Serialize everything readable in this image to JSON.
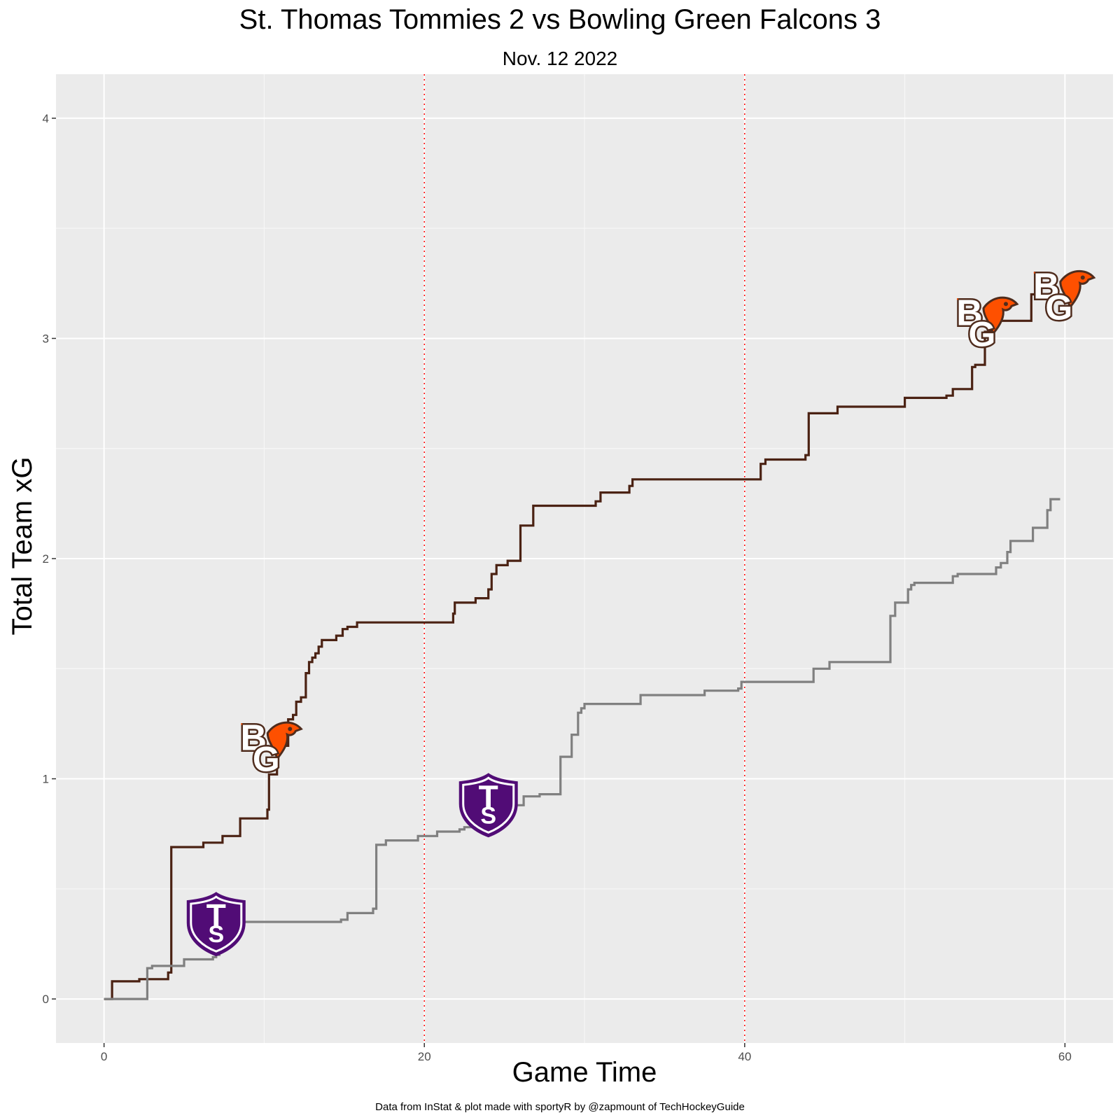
{
  "chart_data": {
    "type": "line",
    "title": "St. Thomas Tommies 2 vs Bowling Green Falcons 3",
    "subtitle": "Nov. 12 2022",
    "xlabel": "Game Time",
    "ylabel": "Total Team xG",
    "caption": "Data from InStat & plot made with sportyR by @zapmount of TechHockeyGuide",
    "xlim": [
      -3,
      63
    ],
    "ylim": [
      -0.2,
      4.2
    ],
    "x_ticks": [
      0,
      20,
      40,
      60
    ],
    "y_ticks": [
      0,
      1,
      2,
      3,
      4
    ],
    "period_lines": [
      20,
      40
    ],
    "grid": true,
    "series": [
      {
        "team": "Bowling Green Falcons",
        "color": "#4b2213",
        "points": [
          [
            0,
            0
          ],
          [
            0.5,
            0
          ],
          [
            0.5,
            0.08
          ],
          [
            2.2,
            0.08
          ],
          [
            2.2,
            0.09
          ],
          [
            4.0,
            0.09
          ],
          [
            4.0,
            0.12
          ],
          [
            4.2,
            0.12
          ],
          [
            4.2,
            0.69
          ],
          [
            6.2,
            0.69
          ],
          [
            6.2,
            0.71
          ],
          [
            7.4,
            0.71
          ],
          [
            7.4,
            0.74
          ],
          [
            8.5,
            0.74
          ],
          [
            8.5,
            0.82
          ],
          [
            10.2,
            0.82
          ],
          [
            10.2,
            0.86
          ],
          [
            10.3,
            0.86
          ],
          [
            10.3,
            1.02
          ],
          [
            10.8,
            1.02
          ],
          [
            10.8,
            1.15
          ],
          [
            11.5,
            1.15
          ],
          [
            11.5,
            1.27
          ],
          [
            11.8,
            1.27
          ],
          [
            11.8,
            1.29
          ],
          [
            12.0,
            1.29
          ],
          [
            12.0,
            1.35
          ],
          [
            12.3,
            1.35
          ],
          [
            12.3,
            1.37
          ],
          [
            12.6,
            1.37
          ],
          [
            12.6,
            1.48
          ],
          [
            12.8,
            1.48
          ],
          [
            12.8,
            1.53
          ],
          [
            13.0,
            1.53
          ],
          [
            13.0,
            1.55
          ],
          [
            13.2,
            1.55
          ],
          [
            13.2,
            1.57
          ],
          [
            13.4,
            1.57
          ],
          [
            13.4,
            1.6
          ],
          [
            13.6,
            1.6
          ],
          [
            13.6,
            1.63
          ],
          [
            14.5,
            1.63
          ],
          [
            14.5,
            1.65
          ],
          [
            14.9,
            1.65
          ],
          [
            14.9,
            1.68
          ],
          [
            15.2,
            1.68
          ],
          [
            15.2,
            1.69
          ],
          [
            15.8,
            1.69
          ],
          [
            15.8,
            1.71
          ],
          [
            21.8,
            1.71
          ],
          [
            21.8,
            1.75
          ],
          [
            21.9,
            1.75
          ],
          [
            21.9,
            1.8
          ],
          [
            23.2,
            1.8
          ],
          [
            23.2,
            1.82
          ],
          [
            24.0,
            1.82
          ],
          [
            24.0,
            1.86
          ],
          [
            24.2,
            1.86
          ],
          [
            24.2,
            1.93
          ],
          [
            24.5,
            1.93
          ],
          [
            24.5,
            1.97
          ],
          [
            25.2,
            1.97
          ],
          [
            25.2,
            1.99
          ],
          [
            26.0,
            1.99
          ],
          [
            26.0,
            2.15
          ],
          [
            26.8,
            2.15
          ],
          [
            26.8,
            2.24
          ],
          [
            30.7,
            2.24
          ],
          [
            30.7,
            2.26
          ],
          [
            31.0,
            2.26
          ],
          [
            31.0,
            2.3
          ],
          [
            32.8,
            2.3
          ],
          [
            32.8,
            2.33
          ],
          [
            33.0,
            2.33
          ],
          [
            33.0,
            2.36
          ],
          [
            41.0,
            2.36
          ],
          [
            41.0,
            2.43
          ],
          [
            41.3,
            2.43
          ],
          [
            41.3,
            2.45
          ],
          [
            43.8,
            2.45
          ],
          [
            43.8,
            2.47
          ],
          [
            44.0,
            2.47
          ],
          [
            44.0,
            2.66
          ],
          [
            45.8,
            2.66
          ],
          [
            45.8,
            2.69
          ],
          [
            50.0,
            2.69
          ],
          [
            50.0,
            2.73
          ],
          [
            52.6,
            2.73
          ],
          [
            52.6,
            2.74
          ],
          [
            53.0,
            2.74
          ],
          [
            53.0,
            2.77
          ],
          [
            54.2,
            2.77
          ],
          [
            54.2,
            2.87
          ],
          [
            54.4,
            2.87
          ],
          [
            54.4,
            2.88
          ],
          [
            55.0,
            2.88
          ],
          [
            55.0,
            3.03
          ],
          [
            55.4,
            3.03
          ],
          [
            55.4,
            3.08
          ],
          [
            57.9,
            3.08
          ],
          [
            57.9,
            3.2
          ],
          [
            59.7,
            3.2
          ]
        ]
      },
      {
        "team": "St. Thomas Tommies",
        "color": "#808080",
        "points": [
          [
            0,
            0
          ],
          [
            2.7,
            0
          ],
          [
            2.7,
            0.14
          ],
          [
            3.0,
            0.14
          ],
          [
            3.0,
            0.15
          ],
          [
            5.0,
            0.15
          ],
          [
            5.0,
            0.18
          ],
          [
            6.8,
            0.18
          ],
          [
            6.8,
            0.19
          ],
          [
            7.0,
            0.19
          ],
          [
            7.0,
            0.2
          ],
          [
            7.2,
            0.2
          ],
          [
            7.2,
            0.35
          ],
          [
            14.8,
            0.35
          ],
          [
            14.8,
            0.36
          ],
          [
            15.2,
            0.36
          ],
          [
            15.2,
            0.39
          ],
          [
            16.8,
            0.39
          ],
          [
            16.8,
            0.41
          ],
          [
            17.0,
            0.41
          ],
          [
            17.0,
            0.7
          ],
          [
            17.6,
            0.7
          ],
          [
            17.6,
            0.72
          ],
          [
            19.6,
            0.72
          ],
          [
            19.6,
            0.74
          ],
          [
            20.8,
            0.74
          ],
          [
            20.8,
            0.76
          ],
          [
            22.2,
            0.76
          ],
          [
            22.2,
            0.77
          ],
          [
            22.5,
            0.77
          ],
          [
            22.5,
            0.78
          ],
          [
            23.5,
            0.78
          ],
          [
            23.5,
            0.8
          ],
          [
            24.4,
            0.8
          ],
          [
            24.4,
            0.88
          ],
          [
            26.2,
            0.88
          ],
          [
            26.2,
            0.92
          ],
          [
            27.2,
            0.92
          ],
          [
            27.2,
            0.93
          ],
          [
            28.5,
            0.93
          ],
          [
            28.5,
            1.1
          ],
          [
            29.2,
            1.1
          ],
          [
            29.2,
            1.2
          ],
          [
            29.6,
            1.2
          ],
          [
            29.6,
            1.3
          ],
          [
            29.8,
            1.3
          ],
          [
            29.8,
            1.32
          ],
          [
            30.0,
            1.32
          ],
          [
            30.0,
            1.34
          ],
          [
            33.5,
            1.34
          ],
          [
            33.5,
            1.38
          ],
          [
            37.5,
            1.38
          ],
          [
            37.5,
            1.4
          ],
          [
            39.6,
            1.4
          ],
          [
            39.6,
            1.41
          ],
          [
            39.8,
            1.41
          ],
          [
            39.8,
            1.44
          ],
          [
            44.3,
            1.44
          ],
          [
            44.3,
            1.5
          ],
          [
            45.3,
            1.5
          ],
          [
            45.3,
            1.53
          ],
          [
            49.1,
            1.53
          ],
          [
            49.1,
            1.74
          ],
          [
            49.4,
            1.74
          ],
          [
            49.4,
            1.8
          ],
          [
            50.2,
            1.8
          ],
          [
            50.2,
            1.86
          ],
          [
            50.4,
            1.86
          ],
          [
            50.4,
            1.88
          ],
          [
            50.6,
            1.88
          ],
          [
            50.6,
            1.89
          ],
          [
            53.0,
            1.89
          ],
          [
            53.0,
            1.92
          ],
          [
            53.3,
            1.92
          ],
          [
            53.3,
            1.93
          ],
          [
            55.7,
            1.93
          ],
          [
            55.7,
            1.96
          ],
          [
            56.0,
            1.96
          ],
          [
            56.0,
            1.98
          ],
          [
            56.4,
            1.98
          ],
          [
            56.4,
            2.03
          ],
          [
            56.6,
            2.03
          ],
          [
            56.6,
            2.08
          ],
          [
            58.0,
            2.08
          ],
          [
            58.0,
            2.14
          ],
          [
            58.9,
            2.14
          ],
          [
            58.9,
            2.22
          ],
          [
            59.1,
            2.22
          ],
          [
            59.1,
            2.27
          ],
          [
            59.7,
            2.27
          ]
        ]
      }
    ],
    "goals": [
      {
        "team": "St. Thomas Tommies",
        "icon": "tommies-shield-logo",
        "x": 7.0,
        "y": 0.34
      },
      {
        "team": "Bowling Green Falcons",
        "icon": "falcons-bg-logo",
        "x": 10.3,
        "y": 1.15
      },
      {
        "team": "St. Thomas Tommies",
        "icon": "tommies-shield-logo",
        "x": 24.0,
        "y": 0.88
      },
      {
        "team": "Bowling Green Falcons",
        "icon": "falcons-bg-logo",
        "x": 55.0,
        "y": 3.08
      },
      {
        "team": "Bowling Green Falcons",
        "icon": "falcons-bg-logo",
        "x": 59.8,
        "y": 3.2
      }
    ],
    "logo_colors": {
      "falcons_brown": "#4f2c1d",
      "falcons_orange": "#fe5000",
      "tommies_purple": "#510c76"
    }
  }
}
